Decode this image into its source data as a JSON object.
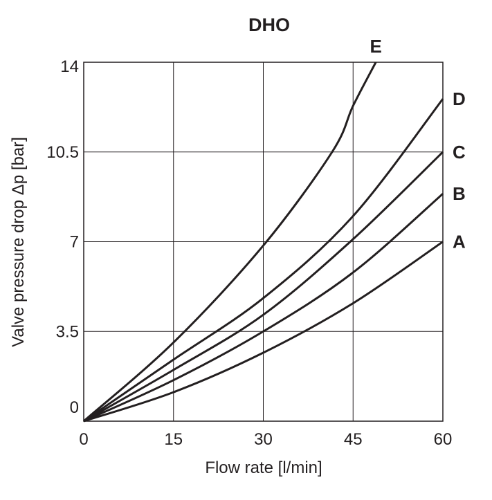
{
  "chart_data": {
    "type": "line",
    "title": "DHO",
    "xlabel": "Flow rate [l/min]",
    "ylabel": "Valve pressure drop Δp [bar]",
    "xlim": [
      0,
      60
    ],
    "ylim": [
      0,
      14
    ],
    "xticks": [
      "0",
      "15",
      "30",
      "45",
      "60"
    ],
    "yticks": [
      "0",
      "3.5",
      "7",
      "10.5",
      "14"
    ],
    "grid": true,
    "line_color": "#231f20",
    "series": [
      {
        "name": "A",
        "x": [
          0,
          15,
          30,
          45,
          60
        ],
        "y": [
          0,
          1.13,
          2.67,
          4.6,
          7.0
        ]
      },
      {
        "name": "B",
        "x": [
          0,
          15,
          30,
          45,
          60
        ],
        "y": [
          0,
          1.6,
          3.5,
          5.8,
          8.87
        ]
      },
      {
        "name": "C",
        "x": [
          0,
          15,
          30,
          45,
          60
        ],
        "y": [
          0,
          2.0,
          4.15,
          7.1,
          10.5
        ]
      },
      {
        "name": "D",
        "x": [
          0,
          15,
          30,
          45,
          60
        ],
        "y": [
          0,
          2.4,
          4.8,
          8.0,
          12.57
        ]
      },
      {
        "name": "E",
        "x": [
          0,
          15,
          30,
          41.5,
          45,
          48.8
        ],
        "y": [
          0,
          3.07,
          6.85,
          10.5,
          12.3,
          14.0
        ]
      }
    ]
  }
}
